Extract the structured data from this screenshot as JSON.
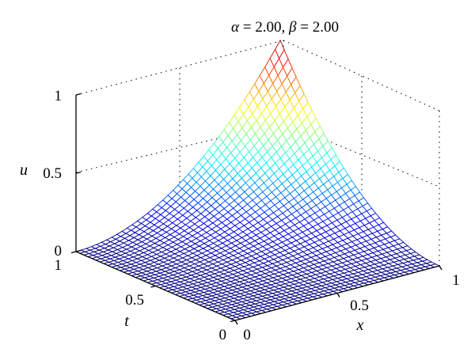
{
  "chart_data": {
    "type": "surface",
    "title": {
      "alpha_symbol": "α",
      "alpha_value": "2.00",
      "beta_symbol": "β",
      "beta_value": "2.00"
    },
    "function": "u = x^alpha * t^beta",
    "alpha": 2.0,
    "beta": 2.0,
    "grid_n": 40,
    "xlabel": "x",
    "ylabel": "t",
    "zlabel": "u",
    "xlim": [
      0,
      1
    ],
    "ylim": [
      0,
      1
    ],
    "zlim": [
      0,
      1
    ],
    "x_ticks": [
      "0",
      "0.5",
      "1"
    ],
    "t_ticks": [
      "0",
      "0.5",
      "1"
    ],
    "u_ticks": [
      "0",
      "0.5",
      "1"
    ],
    "colormap": "jet",
    "corner_values": {
      "x0_t0": 0,
      "x1_t0": 0,
      "x0_t1": 0,
      "x1_t1": 1
    }
  }
}
